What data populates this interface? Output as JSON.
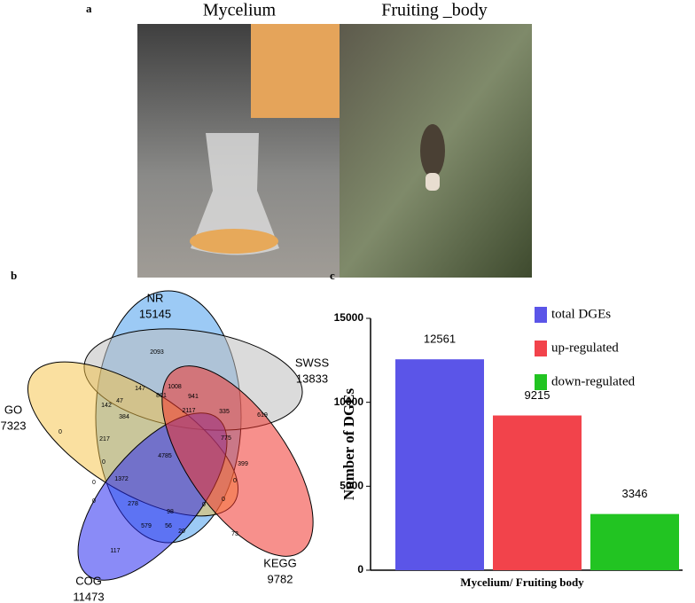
{
  "panel_a": {
    "label": "a",
    "left_title": "Mycelium",
    "right_title": "Fruiting _body"
  },
  "venn": {
    "label": "b",
    "sets": [
      {
        "name": "NR",
        "count": "15145"
      },
      {
        "name": "SWSS",
        "count": "13833"
      },
      {
        "name": "GO",
        "count": "7323"
      },
      {
        "name": "COG",
        "count": "11473"
      },
      {
        "name": "KEGG",
        "count": "9782"
      }
    ],
    "regions": [
      "2093",
      "147",
      "861",
      "1008",
      "941",
      "142",
      "47",
      "384",
      "2117",
      "335",
      "619",
      "0",
      "217",
      "775",
      "4785",
      "0",
      "1372",
      "399",
      "0",
      "0",
      "0",
      "278",
      "0",
      "98",
      "0",
      "579",
      "56",
      "20",
      "73",
      "117"
    ]
  },
  "chart_data": {
    "type": "bar",
    "panel_label": "c",
    "categories": [
      "Mycelium/ Fruiting body"
    ],
    "y_label": "Number of DGEs",
    "series": [
      {
        "name": "total DGEs",
        "color": "#5b55e8",
        "values": [
          12561
        ]
      },
      {
        "name": "up-regulated",
        "color": "#f2434b",
        "values": [
          9215
        ]
      },
      {
        "name": "down-regulated",
        "color": "#22c422",
        "values": [
          3346
        ]
      }
    ],
    "ylim": [
      0,
      15000
    ],
    "yticks": [
      0,
      5000,
      10000,
      15000
    ]
  }
}
